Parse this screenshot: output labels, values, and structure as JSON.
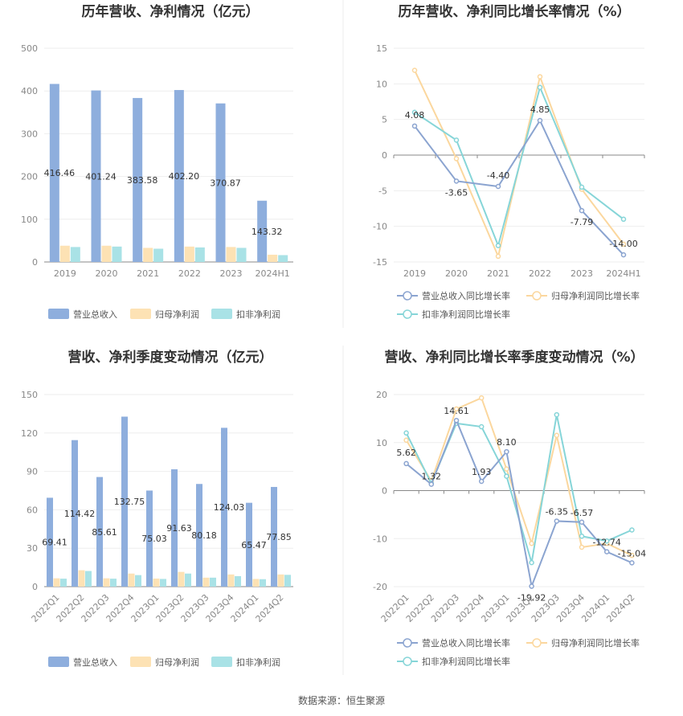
{
  "source": "数据来源：恒生聚源",
  "colors": {
    "revenue": "#8eaedd",
    "parent_np": "#fde2b4",
    "deducted_np": "#a9e2e6",
    "rev_line": "#8ba4d0",
    "np_line": "#fbd79e",
    "ded_line": "#86d5d8"
  },
  "chart_data": [
    {
      "type": "bar",
      "title": "历年营收、净利情况（亿元）",
      "categories": [
        "2019",
        "2020",
        "2021",
        "2022",
        "2023",
        "2024H1"
      ],
      "ylim": [
        0,
        500
      ],
      "yticks": [
        0,
        100,
        200,
        300,
        400,
        500
      ],
      "legend": "bottom",
      "series": [
        {
          "name": "营业总收入",
          "values": [
            416.46,
            401.24,
            383.58,
            402.2,
            370.87,
            143.32
          ]
        },
        {
          "name": "归母净利润",
          "values": [
            38,
            38,
            33,
            36,
            35,
            17
          ]
        },
        {
          "name": "扣非净利润",
          "values": [
            35,
            36,
            31,
            34,
            33,
            16
          ]
        }
      ],
      "labels": [
        "416.46",
        "401.24",
        "383.58",
        "402.20",
        "370.87",
        "143.32"
      ]
    },
    {
      "type": "line",
      "title": "历年营收、净利同比增长率情况（%）",
      "categories": [
        "2019",
        "2020",
        "2021",
        "2022",
        "2023",
        "2024H1"
      ],
      "ylim": [
        -15,
        15
      ],
      "yticks": [
        -15,
        -10,
        -5,
        0,
        5,
        10,
        15
      ],
      "legend": "bottom",
      "series": [
        {
          "name": "营业总收入同比增长率",
          "values": [
            4.08,
            -3.65,
            -4.4,
            4.85,
            -7.79,
            -14.0
          ]
        },
        {
          "name": "归母净利润同比增长率",
          "values": [
            11.9,
            -0.5,
            -14.2,
            11.0,
            -4.8,
            -12.5
          ]
        },
        {
          "name": "扣非净利润同比增长率",
          "values": [
            6.0,
            2.1,
            -12.7,
            9.5,
            -4.5,
            -9.0
          ]
        }
      ],
      "labels": [
        "4.08",
        "-3.65",
        "-4.40",
        "4.85",
        "-7.79",
        "-14.00"
      ]
    },
    {
      "type": "bar",
      "title": "营收、净利季度变动情况（亿元）",
      "categories": [
        "2022Q1",
        "2022Q2",
        "2022Q3",
        "2022Q4",
        "2023Q1",
        "2023Q2",
        "2023Q3",
        "2023Q4",
        "2024Q1",
        "2024Q2"
      ],
      "ylim": [
        0,
        150
      ],
      "yticks": [
        0,
        30,
        60,
        90,
        120,
        150
      ],
      "legend": "bottom",
      "series": [
        {
          "name": "营业总收入",
          "values": [
            69.41,
            114.42,
            85.61,
            132.75,
            75.03,
            91.63,
            80.18,
            124.03,
            65.47,
            77.85
          ]
        },
        {
          "name": "归母净利润",
          "values": [
            6.5,
            12.8,
            6.5,
            10.2,
            6.3,
            11.5,
            7.0,
            9.5,
            6.0,
            9.5
          ]
        },
        {
          "name": "扣非净利润",
          "values": [
            6.2,
            12.2,
            6.2,
            9.0,
            6.0,
            10.2,
            7.0,
            8.2,
            5.8,
            9.2
          ]
        }
      ],
      "labels": [
        "69.41",
        "114.42",
        "85.61",
        "132.75",
        "75.03",
        "91.63",
        "80.18",
        "124.03",
        "65.47",
        "77.85"
      ]
    },
    {
      "type": "line",
      "title": "营收、净利同比增长率季度变动情况（%）",
      "categories": [
        "2022Q1",
        "2022Q2",
        "2022Q3",
        "2022Q4",
        "2023Q1",
        "2023Q2",
        "2023Q3",
        "2023Q4",
        "2024Q1",
        "2024Q2"
      ],
      "ylim": [
        -20,
        20
      ],
      "yticks": [
        -20,
        -10,
        0,
        10,
        20
      ],
      "legend": "bottom",
      "series": [
        {
          "name": "营业总收入同比增长率",
          "values": [
            5.62,
            1.32,
            14.61,
            1.93,
            8.1,
            -19.92,
            -6.35,
            -6.57,
            -12.74,
            -15.04
          ]
        },
        {
          "name": "归母净利润同比增长率",
          "values": [
            10.5,
            2.0,
            17.0,
            19.3,
            4.5,
            -11.0,
            11.5,
            -11.8,
            -11.0,
            -13.5
          ]
        },
        {
          "name": "扣非净利润同比增长率",
          "values": [
            12.0,
            1.5,
            14.0,
            13.3,
            3.0,
            -15.0,
            15.8,
            -9.5,
            -10.5,
            -8.2
          ]
        }
      ],
      "labels": [
        "5.62",
        "1.32",
        "14.61",
        "1.93",
        "8.10",
        "-19.92",
        "-6.35",
        "-6.57",
        "-12.74",
        "-15.04"
      ]
    }
  ]
}
